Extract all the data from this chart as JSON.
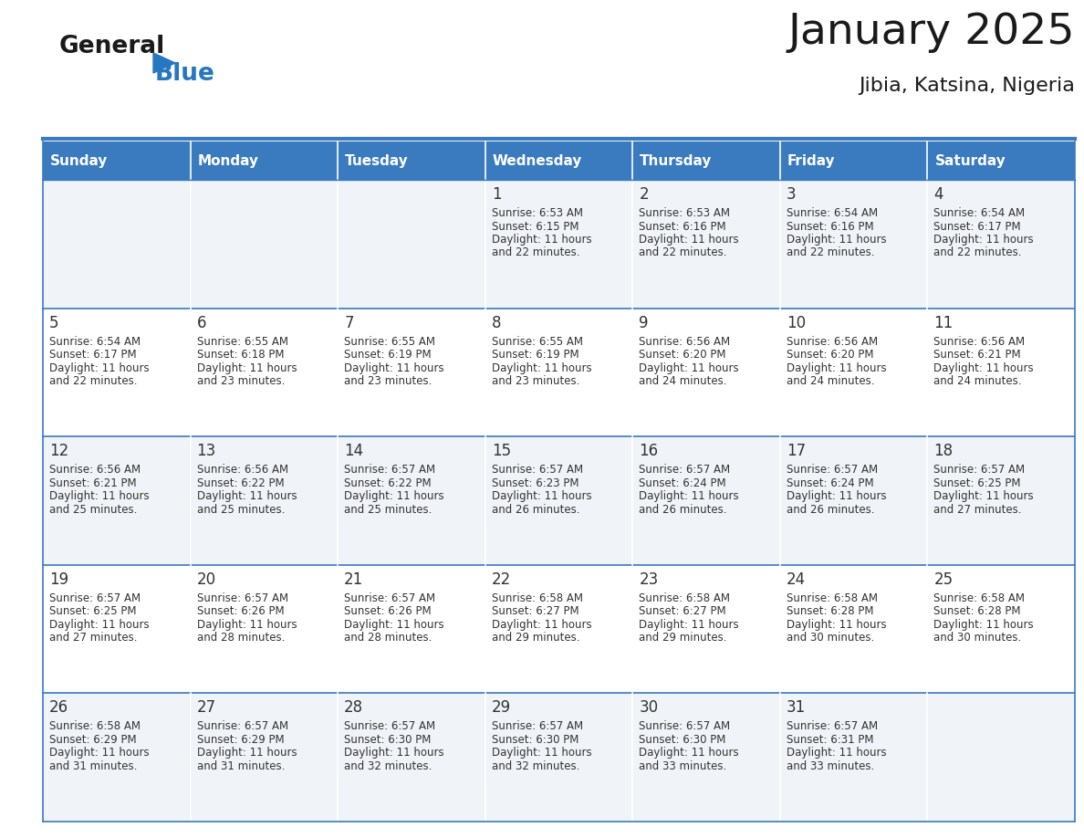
{
  "title": "January 2025",
  "subtitle": "Jibia, Katsina, Nigeria",
  "header_color": "#3a7abf",
  "header_text_color": "#ffffff",
  "cell_bg_odd": "#f0f4f8",
  "cell_bg_even": "#ffffff",
  "border_color": "#3a7abf",
  "text_color": "#333333",
  "days_of_week": [
    "Sunday",
    "Monday",
    "Tuesday",
    "Wednesday",
    "Thursday",
    "Friday",
    "Saturday"
  ],
  "calendar": [
    [
      {
        "day": "",
        "sunrise": "",
        "sunset": "",
        "daylight_h": "",
        "daylight_m": ""
      },
      {
        "day": "",
        "sunrise": "",
        "sunset": "",
        "daylight_h": "",
        "daylight_m": ""
      },
      {
        "day": "",
        "sunrise": "",
        "sunset": "",
        "daylight_h": "",
        "daylight_m": ""
      },
      {
        "day": "1",
        "sunrise": "6:53 AM",
        "sunset": "6:15 PM",
        "daylight_h": "11",
        "daylight_m": "22"
      },
      {
        "day": "2",
        "sunrise": "6:53 AM",
        "sunset": "6:16 PM",
        "daylight_h": "11",
        "daylight_m": "22"
      },
      {
        "day": "3",
        "sunrise": "6:54 AM",
        "sunset": "6:16 PM",
        "daylight_h": "11",
        "daylight_m": "22"
      },
      {
        "day": "4",
        "sunrise": "6:54 AM",
        "sunset": "6:17 PM",
        "daylight_h": "11",
        "daylight_m": "22"
      }
    ],
    [
      {
        "day": "5",
        "sunrise": "6:54 AM",
        "sunset": "6:17 PM",
        "daylight_h": "11",
        "daylight_m": "22"
      },
      {
        "day": "6",
        "sunrise": "6:55 AM",
        "sunset": "6:18 PM",
        "daylight_h": "11",
        "daylight_m": "23"
      },
      {
        "day": "7",
        "sunrise": "6:55 AM",
        "sunset": "6:19 PM",
        "daylight_h": "11",
        "daylight_m": "23"
      },
      {
        "day": "8",
        "sunrise": "6:55 AM",
        "sunset": "6:19 PM",
        "daylight_h": "11",
        "daylight_m": "23"
      },
      {
        "day": "9",
        "sunrise": "6:56 AM",
        "sunset": "6:20 PM",
        "daylight_h": "11",
        "daylight_m": "24"
      },
      {
        "day": "10",
        "sunrise": "6:56 AM",
        "sunset": "6:20 PM",
        "daylight_h": "11",
        "daylight_m": "24"
      },
      {
        "day": "11",
        "sunrise": "6:56 AM",
        "sunset": "6:21 PM",
        "daylight_h": "11",
        "daylight_m": "24"
      }
    ],
    [
      {
        "day": "12",
        "sunrise": "6:56 AM",
        "sunset": "6:21 PM",
        "daylight_h": "11",
        "daylight_m": "25"
      },
      {
        "day": "13",
        "sunrise": "6:56 AM",
        "sunset": "6:22 PM",
        "daylight_h": "11",
        "daylight_m": "25"
      },
      {
        "day": "14",
        "sunrise": "6:57 AM",
        "sunset": "6:22 PM",
        "daylight_h": "11",
        "daylight_m": "25"
      },
      {
        "day": "15",
        "sunrise": "6:57 AM",
        "sunset": "6:23 PM",
        "daylight_h": "11",
        "daylight_m": "26"
      },
      {
        "day": "16",
        "sunrise": "6:57 AM",
        "sunset": "6:24 PM",
        "daylight_h": "11",
        "daylight_m": "26"
      },
      {
        "day": "17",
        "sunrise": "6:57 AM",
        "sunset": "6:24 PM",
        "daylight_h": "11",
        "daylight_m": "26"
      },
      {
        "day": "18",
        "sunrise": "6:57 AM",
        "sunset": "6:25 PM",
        "daylight_h": "11",
        "daylight_m": "27"
      }
    ],
    [
      {
        "day": "19",
        "sunrise": "6:57 AM",
        "sunset": "6:25 PM",
        "daylight_h": "11",
        "daylight_m": "27"
      },
      {
        "day": "20",
        "sunrise": "6:57 AM",
        "sunset": "6:26 PM",
        "daylight_h": "11",
        "daylight_m": "28"
      },
      {
        "day": "21",
        "sunrise": "6:57 AM",
        "sunset": "6:26 PM",
        "daylight_h": "11",
        "daylight_m": "28"
      },
      {
        "day": "22",
        "sunrise": "6:58 AM",
        "sunset": "6:27 PM",
        "daylight_h": "11",
        "daylight_m": "29"
      },
      {
        "day": "23",
        "sunrise": "6:58 AM",
        "sunset": "6:27 PM",
        "daylight_h": "11",
        "daylight_m": "29"
      },
      {
        "day": "24",
        "sunrise": "6:58 AM",
        "sunset": "6:28 PM",
        "daylight_h": "11",
        "daylight_m": "30"
      },
      {
        "day": "25",
        "sunrise": "6:58 AM",
        "sunset": "6:28 PM",
        "daylight_h": "11",
        "daylight_m": "30"
      }
    ],
    [
      {
        "day": "26",
        "sunrise": "6:58 AM",
        "sunset": "6:29 PM",
        "daylight_h": "11",
        "daylight_m": "31"
      },
      {
        "day": "27",
        "sunrise": "6:57 AM",
        "sunset": "6:29 PM",
        "daylight_h": "11",
        "daylight_m": "31"
      },
      {
        "day": "28",
        "sunrise": "6:57 AM",
        "sunset": "6:30 PM",
        "daylight_h": "11",
        "daylight_m": "32"
      },
      {
        "day": "29",
        "sunrise": "6:57 AM",
        "sunset": "6:30 PM",
        "daylight_h": "11",
        "daylight_m": "32"
      },
      {
        "day": "30",
        "sunrise": "6:57 AM",
        "sunset": "6:30 PM",
        "daylight_h": "11",
        "daylight_m": "33"
      },
      {
        "day": "31",
        "sunrise": "6:57 AM",
        "sunset": "6:31 PM",
        "daylight_h": "11",
        "daylight_m": "33"
      },
      {
        "day": "",
        "sunrise": "",
        "sunset": "",
        "daylight_h": "",
        "daylight_m": ""
      }
    ]
  ],
  "logo_general_color": "#1a1a1a",
  "logo_blue_color": "#2777c0",
  "figsize": [
    11.88,
    9.18
  ],
  "dpi": 100
}
